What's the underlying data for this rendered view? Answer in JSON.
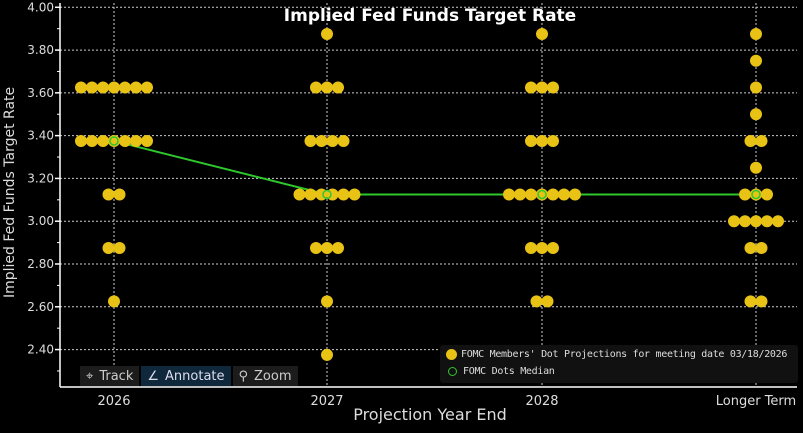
{
  "chart_data": {
    "type": "scatter",
    "title": "Implied Fed Funds Target Rate",
    "xlabel": "Projection Year End",
    "ylabel": "Implied Fed Funds Target Rate",
    "categories": [
      "2026",
      "2027",
      "2028",
      "Longer Term"
    ],
    "ylim": [
      2.225,
      4.02
    ],
    "yticks": [
      "4.00",
      "3.80",
      "3.60",
      "3.40",
      "3.20",
      "3.00",
      "2.80",
      "2.60",
      "2.40"
    ],
    "grid": true,
    "legend_position": "bottom-right",
    "series": [
      {
        "name": "FOMC Members' Dot Projections for meeting date 03/18/2026",
        "color": "#e8c214",
        "marker": "filled-circle",
        "dots": [
          {
            "category": "2026",
            "counts": {
              "3.625": 7,
              "3.375": 7,
              "3.125": 2,
              "2.875": 2,
              "2.625": 1
            }
          },
          {
            "category": "2027",
            "counts": {
              "3.875": 1,
              "3.625": 3,
              "3.375": 4,
              "3.125": 6,
              "2.875": 3,
              "2.625": 1,
              "2.375": 1
            }
          },
          {
            "category": "2028",
            "counts": {
              "3.875": 1,
              "3.625": 3,
              "3.375": 3,
              "3.125": 7,
              "2.875": 3,
              "2.625": 2
            }
          },
          {
            "category": "Longer Term",
            "counts": {
              "3.875": 1,
              "3.75": 1,
              "3.625": 1,
              "3.5": 1,
              "3.375": 2,
              "3.25": 1,
              "3.125": 3,
              "3.0": 5,
              "2.875": 2,
              "2.625": 2
            }
          }
        ]
      },
      {
        "name": "FOMC Dots Median",
        "color": "#2ec82e",
        "marker": "open-circle",
        "values": [
          3.375,
          3.125,
          3.125,
          3.125
        ]
      }
    ]
  },
  "toolbar": {
    "track": "Track",
    "annotate": "Annotate",
    "zoom": "Zoom"
  }
}
